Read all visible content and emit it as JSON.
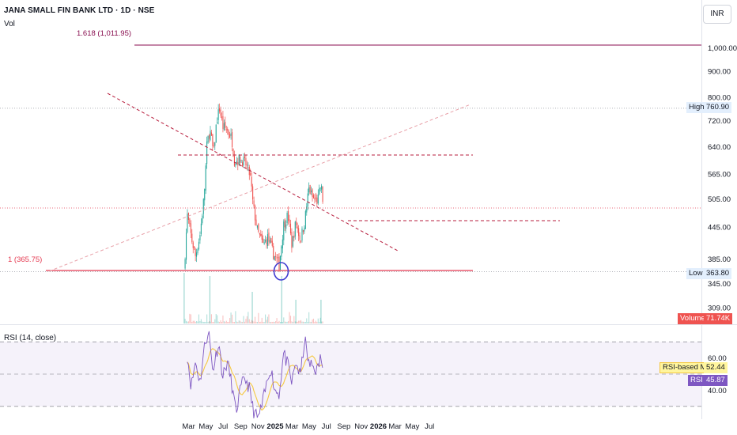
{
  "header": {
    "symbol_line": "JANA SMALL FIN BANK LTD · 1D · NSE",
    "volume_label": "Vol",
    "currency_button": "INR"
  },
  "colors": {
    "up": "#26a69a",
    "down": "#ef5350",
    "rsi_line": "#7e57c2",
    "rsi_ma": "#f5c842",
    "fib_line": "#880e4f",
    "level_red": "#e53950"
  },
  "chart_data": [
    {
      "type": "candlestick",
      "title": "JANA SMALL FIN BANK LTD · 1D · NSE",
      "x_ticks": [
        "Mar",
        "May",
        "Jul",
        "Sep",
        "Nov",
        "2025",
        "Mar",
        "May",
        "Jul",
        "Sep",
        "Nov",
        "2026",
        "Mar",
        "May",
        "Jul"
      ],
      "y_ticks": [
        "1,000.00",
        "900.00",
        "800.00",
        "720.00",
        "640.00",
        "565.00",
        "505.00",
        "445.00",
        "385.00",
        "345.00",
        "309.00"
      ],
      "ylim": [
        295,
        1080
      ],
      "log_scale": true,
      "grid": false,
      "approx_close_series": [
        {
          "date": "2024-02-14",
          "close": 366
        },
        {
          "date": "2024-02-25",
          "close": 470
        },
        {
          "date": "2024-03-10",
          "close": 425
        },
        {
          "date": "2024-03-25",
          "close": 390
        },
        {
          "date": "2024-04-10",
          "close": 430
        },
        {
          "date": "2024-04-25",
          "close": 515
        },
        {
          "date": "2024-05-05",
          "close": 650
        },
        {
          "date": "2024-05-15",
          "close": 690
        },
        {
          "date": "2024-05-28",
          "close": 620
        },
        {
          "date": "2024-06-08",
          "close": 720
        },
        {
          "date": "2024-06-18",
          "close": 760
        },
        {
          "date": "2024-06-30",
          "close": 700
        },
        {
          "date": "2024-07-15",
          "close": 690
        },
        {
          "date": "2024-07-31",
          "close": 665
        },
        {
          "date": "2024-08-10",
          "close": 600
        },
        {
          "date": "2024-08-31",
          "close": 605
        },
        {
          "date": "2024-09-20",
          "close": 590
        },
        {
          "date": "2024-10-05",
          "close": 560
        },
        {
          "date": "2024-10-15",
          "close": 490
        },
        {
          "date": "2024-10-31",
          "close": 435
        },
        {
          "date": "2024-11-20",
          "close": 410
        },
        {
          "date": "2024-12-05",
          "close": 425
        },
        {
          "date": "2024-12-25",
          "close": 395
        },
        {
          "date": "2025-01-15",
          "close": 375
        },
        {
          "date": "2025-01-31",
          "close": 450
        },
        {
          "date": "2025-02-15",
          "close": 470
        },
        {
          "date": "2025-03-01",
          "close": 410
        },
        {
          "date": "2025-03-15",
          "close": 455
        },
        {
          "date": "2025-03-31",
          "close": 420
        },
        {
          "date": "2025-04-15",
          "close": 455
        },
        {
          "date": "2025-04-30",
          "close": 530
        },
        {
          "date": "2025-05-15",
          "close": 505
        },
        {
          "date": "2025-05-31",
          "close": 500
        },
        {
          "date": "2025-06-12",
          "close": 540
        },
        {
          "date": "2025-06-20",
          "close": 492
        }
      ],
      "levels": [
        {
          "label": "High",
          "value": 760.9,
          "value_text": "760.90"
        },
        {
          "label": "Low",
          "value": 363.8,
          "value_text": "363.80"
        }
      ],
      "fib_levels": [
        {
          "ratio_text": "1.618 (1,011.95)",
          "value": 1011.95
        },
        {
          "ratio_text": "1 (365.75)",
          "value": 365.75
        }
      ],
      "annotations": {
        "horizontal_dashed": [
          616,
          458
        ],
        "downtrend_start": {
          "date": "2024-05-20",
          "value": 820
        },
        "downtrend_end": {
          "date": "2025-06-30",
          "value": 400
        }
      },
      "volume": {
        "label": "Volume",
        "value_text": "71.74K"
      }
    },
    {
      "type": "line",
      "title": "RSI (14, close)",
      "y_ticks": [
        "60.00",
        "40.00"
      ],
      "ylim": [
        20,
        80
      ],
      "bands": [
        70,
        50,
        30
      ],
      "series": [
        {
          "name": "RSI",
          "value_text": "45.87"
        },
        {
          "name": "RSI-based MA",
          "value_text": "52.44"
        }
      ],
      "approx_rsi": [
        {
          "date": "2024-02-25",
          "value": 62
        },
        {
          "date": "2024-03-10",
          "value": 42
        },
        {
          "date": "2024-03-25",
          "value": 58
        },
        {
          "date": "2024-04-10",
          "value": 45
        },
        {
          "date": "2024-04-25",
          "value": 66
        },
        {
          "date": "2024-05-10",
          "value": 78
        },
        {
          "date": "2024-05-25",
          "value": 52
        },
        {
          "date": "2024-06-15",
          "value": 70
        },
        {
          "date": "2024-06-30",
          "value": 48
        },
        {
          "date": "2024-07-15",
          "value": 58
        },
        {
          "date": "2024-07-31",
          "value": 44
        },
        {
          "date": "2024-08-15",
          "value": 26
        },
        {
          "date": "2024-08-31",
          "value": 40
        },
        {
          "date": "2024-09-15",
          "value": 48
        },
        {
          "date": "2024-09-30",
          "value": 42
        },
        {
          "date": "2024-10-15",
          "value": 28
        },
        {
          "date": "2024-10-31",
          "value": 22
        },
        {
          "date": "2024-11-15",
          "value": 30
        },
        {
          "date": "2024-11-30",
          "value": 42
        },
        {
          "date": "2024-12-15",
          "value": 55
        },
        {
          "date": "2024-12-31",
          "value": 40
        },
        {
          "date": "2025-01-15",
          "value": 38
        },
        {
          "date": "2025-01-31",
          "value": 63
        },
        {
          "date": "2025-02-15",
          "value": 55
        },
        {
          "date": "2025-03-01",
          "value": 44
        },
        {
          "date": "2025-03-15",
          "value": 58
        },
        {
          "date": "2025-03-31",
          "value": 48
        },
        {
          "date": "2025-04-15",
          "value": 72
        },
        {
          "date": "2025-04-30",
          "value": 56
        },
        {
          "date": "2025-05-15",
          "value": 55
        },
        {
          "date": "2025-05-31",
          "value": 52
        },
        {
          "date": "2025-06-12",
          "value": 62
        },
        {
          "date": "2025-06-20",
          "value": 45.87
        }
      ]
    }
  ]
}
